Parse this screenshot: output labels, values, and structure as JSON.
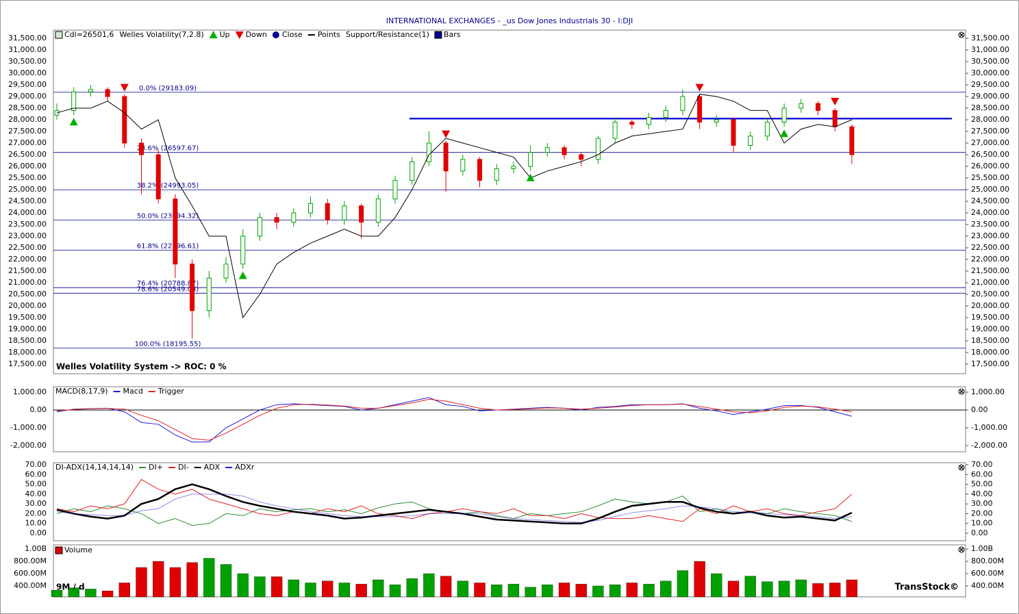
{
  "title": "INTERNATIONAL EXCHANGES - _us Dow Jones Industrials 30 - I:DJI",
  "chart_data": [
    {
      "type": "candlestick",
      "legend": [
        "Cdl=26501,6",
        "Welles Volatility(7,2.8)",
        "Up",
        "Down",
        "Close",
        "Points",
        "Support/Resistance(1)",
        "Bars"
      ],
      "footer": "Welles Volatility System -> ROC: 0 %",
      "up_color": "#00a000",
      "down_color": "#e00000",
      "line_color": "#000000",
      "level_color": "#00008b",
      "signal_up_color": "#00b000",
      "signal_down_color": "#e00000",
      "open": [
        28200,
        28400,
        29200,
        29300,
        29000,
        27000,
        26500,
        24600,
        21800,
        19800,
        21200,
        21800,
        23000,
        23800,
        23600,
        24000,
        24400,
        23700,
        24300,
        23600,
        24600,
        25400,
        26200,
        27000,
        25800,
        26300,
        25400,
        25900,
        26000,
        26600,
        26800,
        26500,
        26300,
        27200,
        27900,
        27800,
        28100,
        28400,
        29000,
        27900,
        28000,
        26900,
        27300,
        27900,
        28500,
        28700,
        28400,
        27700
      ],
      "high": [
        28700,
        29400,
        29500,
        29400,
        29100,
        27200,
        26700,
        24800,
        22000,
        21500,
        22100,
        23300,
        24000,
        24000,
        24200,
        24700,
        24600,
        24500,
        24400,
        24800,
        25600,
        26400,
        27500,
        27100,
        26500,
        26400,
        26100,
        26200,
        26900,
        27000,
        26900,
        26600,
        27300,
        28100,
        28000,
        28300,
        28600,
        29300,
        29100,
        28200,
        28100,
        27500,
        28100,
        28700,
        28900,
        28800,
        28500,
        27800
      ],
      "low": [
        28000,
        28200,
        29000,
        28800,
        26800,
        24800,
        24400,
        21200,
        18600,
        19500,
        21000,
        21600,
        22800,
        23300,
        23400,
        23800,
        23500,
        23500,
        22900,
        23400,
        24400,
        25200,
        26000,
        24900,
        25600,
        25100,
        25200,
        25700,
        25800,
        26400,
        26300,
        26000,
        26100,
        27000,
        27600,
        27600,
        27900,
        28200,
        27600,
        27700,
        26600,
        26700,
        27100,
        27700,
        28300,
        28200,
        27500,
        26100
      ],
      "close": [
        28400,
        29200,
        29300,
        29000,
        27000,
        26500,
        24600,
        21800,
        19800,
        21200,
        21800,
        23000,
        23800,
        23600,
        24000,
        24400,
        23700,
        24300,
        23600,
        24600,
        25400,
        26200,
        27000,
        25800,
        26300,
        25400,
        25900,
        26000,
        26600,
        26800,
        26500,
        26300,
        27200,
        27900,
        27800,
        28100,
        28400,
        29000,
        27900,
        28000,
        26900,
        27300,
        27900,
        28500,
        28700,
        28400,
        27700,
        26500
      ],
      "welles": [
        28300,
        28500,
        28500,
        28800,
        28300,
        27600,
        28000,
        25500,
        24300,
        23000,
        23000,
        19500,
        20500,
        21800,
        22300,
        22700,
        23000,
        23300,
        23000,
        23000,
        23800,
        25000,
        26500,
        27200,
        27000,
        26800,
        26600,
        26400,
        25500,
        25800,
        26000,
        26200,
        26500,
        27000,
        27300,
        27400,
        27500,
        27600,
        29100,
        29000,
        28800,
        28400,
        28400,
        27000,
        27600,
        27800,
        27700,
        28000
      ],
      "up_at": [
        1,
        11,
        28,
        43
      ],
      "down_at": [
        4,
        23,
        38,
        46
      ],
      "support_resistance": [
        28050
      ],
      "fib_levels": [
        {
          "value": 29183.09,
          "label": "0.0% (29183.09)"
        },
        {
          "value": 26597.67,
          "label": "23.6% (26597.67)"
        },
        {
          "value": 24993.05,
          "label": "38.2% (24993.05)"
        },
        {
          "value": 23694.32,
          "label": "50.0% (23694.32)"
        },
        {
          "value": 22396.61,
          "label": "61.8% (22396.61)"
        },
        {
          "value": 20788.87,
          "label": "76.4% (20788.87)"
        },
        {
          "value": 20549.03,
          "label": "78.6% (20549.03)"
        },
        {
          "value": 18195.55,
          "label": "100.0% (18195.55)"
        }
      ],
      "ylim": [
        17088,
        31853
      ],
      "yticks": [
        {
          "value": 17500,
          "label": "17,500.00"
        },
        {
          "value": 18000,
          "label": "18,000.00"
        },
        {
          "value": 18500,
          "label": "18,500.00"
        },
        {
          "value": 19000,
          "label": "19,000.00"
        },
        {
          "value": 19500,
          "label": "19,500.00"
        },
        {
          "value": 20000,
          "label": "20,000.00"
        },
        {
          "value": 20500,
          "label": "20,500.00"
        },
        {
          "value": 21000,
          "label": "21,000.00"
        },
        {
          "value": 21500,
          "label": "21,500.00"
        },
        {
          "value": 22000,
          "label": "22,000.00"
        },
        {
          "value": 22500,
          "label": "22,500.00"
        },
        {
          "value": 23000,
          "label": "23,000.00"
        },
        {
          "value": 23500,
          "label": "23,500.00"
        },
        {
          "value": 24000,
          "label": "24,000.00"
        },
        {
          "value": 24500,
          "label": "24,500.00"
        },
        {
          "value": 25000,
          "label": "25,000.00"
        },
        {
          "value": 25500,
          "label": "25,500.00"
        },
        {
          "value": 26000,
          "label": "26,000.00"
        },
        {
          "value": 26500,
          "label": "26,500.00"
        },
        {
          "value": 27000,
          "label": "27,000.00"
        },
        {
          "value": 27500,
          "label": "27,500.00"
        },
        {
          "value": 28000,
          "label": "28,000.00"
        },
        {
          "value": 28500,
          "label": "28,500.00"
        },
        {
          "value": 29000,
          "label": "29,000.00"
        },
        {
          "value": 29500,
          "label": "29,500.00"
        },
        {
          "value": 30000,
          "label": "30,000.00"
        },
        {
          "value": 30500,
          "label": "30,500.00"
        },
        {
          "value": 31000,
          "label": "31,000.00"
        },
        {
          "value": 31500,
          "label": "31,500.00"
        }
      ]
    },
    {
      "type": "line",
      "title": "MACD(8,17,9)",
      "zero_color": "#000000",
      "series": [
        {
          "name": "Macd",
          "color": "#1a1adc",
          "values": [
            -100,
            50,
            80,
            100,
            -100,
            -700,
            -800,
            -1400,
            -1800,
            -1800,
            -1000,
            -500,
            0,
            300,
            350,
            300,
            250,
            200,
            0,
            100,
            300,
            500,
            700,
            300,
            200,
            -50,
            0,
            50,
            100,
            150,
            100,
            0,
            150,
            200,
            300,
            300,
            300,
            350,
            100,
            -50,
            -250,
            -100,
            50,
            250,
            250,
            150,
            -100,
            -350
          ]
        },
        {
          "name": "Trigger",
          "color": "#e02020",
          "values": [
            -50,
            30,
            70,
            90,
            50,
            -300,
            -600,
            -1100,
            -1600,
            -1700,
            -1300,
            -800,
            -300,
            100,
            300,
            320,
            280,
            220,
            100,
            100,
            250,
            400,
            600,
            500,
            300,
            100,
            0,
            30,
            70,
            120,
            100,
            50,
            100,
            170,
            250,
            300,
            300,
            330,
            200,
            50,
            -100,
            -150,
            -50,
            150,
            220,
            180,
            50,
            -100
          ]
        }
      ],
      "ylim": [
        -2346,
        1308
      ],
      "yticks": [
        {
          "value": -2000,
          "label": "-2,000.00"
        },
        {
          "value": -1000,
          "label": "-1,000.00"
        },
        {
          "value": 0,
          "label": "0.00"
        },
        {
          "value": 1000,
          "label": "1,000.00"
        }
      ]
    },
    {
      "type": "line",
      "title": "DI-ADX(14,14,14,14)",
      "series": [
        {
          "name": "DI+",
          "color": "#2e8b2e",
          "values": [
            20,
            25,
            22,
            28,
            25,
            20,
            10,
            15,
            8,
            10,
            20,
            18,
            25,
            22,
            24,
            25,
            22,
            24,
            20,
            26,
            30,
            32,
            25,
            22,
            20,
            22,
            18,
            15,
            20,
            18,
            20,
            22,
            28,
            35,
            32,
            30,
            32,
            38,
            22,
            25,
            20,
            22,
            20,
            25,
            22,
            20,
            18,
            12
          ]
        },
        {
          "name": "DI-",
          "color": "#e02020",
          "values": [
            25,
            22,
            28,
            25,
            30,
            55,
            45,
            40,
            45,
            35,
            30,
            25,
            20,
            18,
            22,
            20,
            25,
            22,
            28,
            20,
            18,
            15,
            20,
            22,
            25,
            22,
            20,
            25,
            18,
            18,
            15,
            20,
            16,
            15,
            15,
            18,
            15,
            12,
            25,
            20,
            28,
            22,
            25,
            20,
            18,
            22,
            25,
            40
          ]
        },
        {
          "name": "ADX",
          "color": "#000000",
          "values": [
            24,
            20,
            17,
            15,
            18,
            30,
            35,
            45,
            50,
            45,
            38,
            32,
            28,
            25,
            22,
            20,
            18,
            15,
            16,
            18,
            20,
            22,
            24,
            22,
            20,
            17,
            14,
            13,
            12,
            11,
            10,
            10,
            15,
            22,
            28,
            30,
            32,
            32,
            26,
            22,
            20,
            22,
            18,
            16,
            17,
            15,
            13,
            21
          ]
        },
        {
          "name": "ADXr",
          "color": "#1a1adc",
          "values": [
            22,
            20,
            19,
            18,
            18,
            23,
            25,
            35,
            40,
            40,
            40,
            38,
            32,
            28,
            25,
            22,
            20,
            18,
            17,
            17,
            17,
            18,
            20,
            20,
            20,
            20,
            17,
            15,
            14,
            13,
            12,
            11,
            13,
            17,
            21,
            23,
            25,
            28,
            27,
            25,
            22,
            21,
            20,
            19,
            18,
            17,
            15,
            17
          ]
        }
      ],
      "ylim": [
        -7.7,
        72.1
      ],
      "yticks": [
        {
          "value": 0,
          "label": "0.00"
        },
        {
          "value": 10,
          "label": "10.00"
        },
        {
          "value": 20,
          "label": "20.00"
        },
        {
          "value": 30,
          "label": "30.00"
        },
        {
          "value": 40,
          "label": "40.00"
        },
        {
          "value": 50,
          "label": "50.00"
        },
        {
          "value": 60,
          "label": "60.00"
        },
        {
          "value": 70,
          "label": "70.00"
        }
      ]
    },
    {
      "type": "volume",
      "title": "Volume",
      "period": "9M / d",
      "brand": "TransStock©",
      "up_color": "#00a000",
      "down_color": "#e00000",
      "values": [
        330,
        370,
        350,
        320,
        450,
        700,
        800,
        700,
        780,
        850,
        750,
        600,
        550,
        550,
        500,
        450,
        480,
        450,
        430,
        500,
        420,
        520,
        600,
        560,
        480,
        450,
        420,
        430,
        380,
        420,
        450,
        430,
        400,
        420,
        450,
        430,
        480,
        650,
        800,
        600,
        480,
        560,
        470,
        480,
        500,
        440,
        450,
        500
      ],
      "ylim": [
        222,
        1067
      ],
      "yticks": [
        {
          "value": 400,
          "label": "400.00M"
        },
        {
          "value": 600,
          "label": "600.00M"
        },
        {
          "value": 800,
          "label": "800.00M"
        },
        {
          "value": 1000,
          "label": "1.00B"
        }
      ]
    }
  ]
}
